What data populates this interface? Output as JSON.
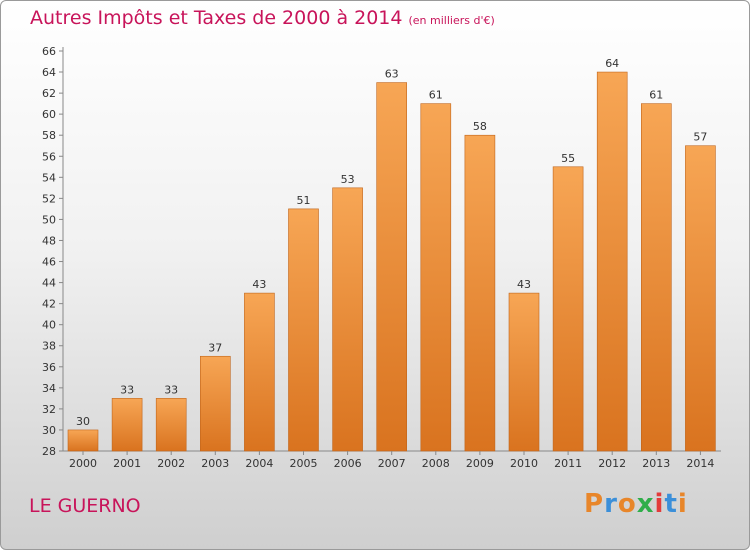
{
  "header": {
    "title": "Autres Impôts et Taxes de 2000 à 2014",
    "subtitle": "(en milliers d'€)"
  },
  "footer": {
    "place": "LE GUERNO",
    "brand": "Proxiti"
  },
  "colors": {
    "title": "#c8145a",
    "bar_top": "#f7a655",
    "bar_bottom": "#d9731f"
  },
  "chart_data": {
    "type": "bar",
    "title": "Autres Impôts et Taxes de 2000 à 2014",
    "categories": [
      "2000",
      "2001",
      "2002",
      "2003",
      "2004",
      "2005",
      "2006",
      "2007",
      "2008",
      "2009",
      "2010",
      "2011",
      "2012",
      "2013",
      "2014"
    ],
    "values": [
      30,
      33,
      33,
      37,
      43,
      51,
      53,
      63,
      61,
      58,
      43,
      55,
      64,
      61,
      57
    ],
    "ylim": [
      28,
      66
    ],
    "yticks": [
      28,
      30,
      32,
      34,
      36,
      38,
      40,
      42,
      44,
      46,
      48,
      50,
      52,
      54,
      56,
      58,
      60,
      62,
      64,
      66
    ],
    "grid": false,
    "data_labels": true
  }
}
